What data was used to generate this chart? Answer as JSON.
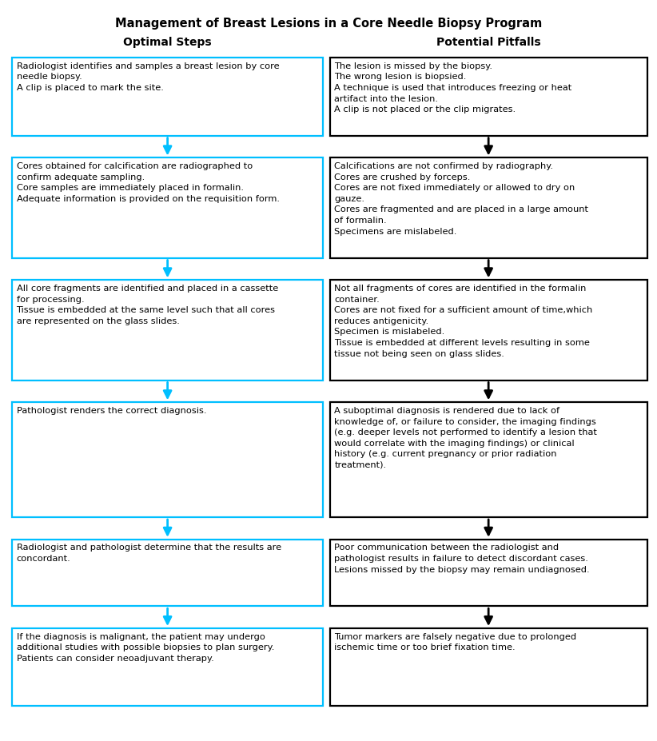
{
  "title": "Management of Breast Lesions in a Core Needle Biopsy Program",
  "col_headers": [
    "Optimal Steps",
    "Potential Pitfalls"
  ],
  "left_border_color": "#00BFFF",
  "right_border_color": "#000000",
  "left_arrow_color": "#00BFFF",
  "right_arrow_color": "#000000",
  "background_color": "#ffffff",
  "rows": [
    {
      "left": "Radiologist identifies and samples a breast lesion by core\nneedle biopsy.\nA clip is placed to mark the site.",
      "right": "The lesion is missed by the biopsy.\nThe wrong lesion is biopsied.\nA technique is used that introduces freezing or heat\nartifact into the lesion.\nA clip is not placed or the clip migrates."
    },
    {
      "left": "Cores obtained for calcification are radiographed to\nconfirm adequate sampling.\nCore samples are immediately placed in formalin.\nAdequate information is provided on the requisition form.",
      "right": "Calcifications are not confirmed by radiography.\nCores are crushed by forceps.\nCores are not fixed immediately or allowed to dry on\ngauze.\nCores are fragmented and are placed in a large amount\nof formalin.\nSpecimens are mislabeled."
    },
    {
      "left": "All core fragments are identified and placed in a cassette\nfor processing.\nTissue is embedded at the same level such that all cores\nare represented on the glass slides.",
      "right": "Not all fragments of cores are identified in the formalin\ncontainer.\nCores are not fixed for a sufficient amount of time,which\nreduces antigenicity.\nSpecimen is mislabeled.\nTissue is embedded at different levels resulting in some\ntissue not being seen on glass slides."
    },
    {
      "left": "Pathologist renders the correct diagnosis.",
      "right": "A suboptimal diagnosis is rendered due to lack of\nknowledge of, or failure to consider, the imaging findings\n(e.g. deeper levels not performed to identify a lesion that\nwould correlate with the imaging findings) or clinical\nhistory (e.g. current pregnancy or prior radiation\ntreatment)."
    },
    {
      "left": "Radiologist and pathologist determine that the results are\nconcordant.",
      "right": "Poor communication between the radiologist and\npathologist results in failure to detect discordant cases.\nLesions missed by the biopsy may remain undiagnosed."
    },
    {
      "left": "If the diagnosis is malignant, the patient may undergo\nadditional studies with possible biopsies to plan surgery.\nPatients can consider neoadjuvant therapy.",
      "right": "Tumor markers are falsely negative due to prolonged\nischemic time or too brief fixation time."
    }
  ],
  "figsize": [
    8.22,
    9.27
  ],
  "dpi": 100
}
